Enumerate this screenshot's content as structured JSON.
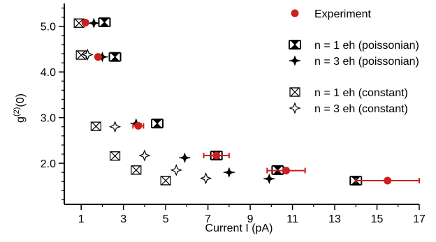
{
  "chart_data": {
    "type": "scatter",
    "xlabel": "Current I (pA)",
    "ylabel_main": "g",
    "ylabel_sup": "(2)",
    "ylabel_suffix": "(0)",
    "xlim": [
      0.2,
      17
    ],
    "ylim": [
      1.1,
      5.5
    ],
    "xticks": [
      1,
      3,
      5,
      7,
      9,
      11,
      13,
      15,
      17
    ],
    "yticks": [
      2.0,
      3.0,
      4.0,
      5.0
    ],
    "xtick_labels": [
      "1",
      "3",
      "5",
      "7",
      "9",
      "11",
      "13",
      "15",
      "17"
    ],
    "ytick_labels": [
      "2.0",
      "3.0",
      "4.0",
      "5.0"
    ],
    "grid": false,
    "legend_position": "top-right",
    "series": [
      {
        "name": "Experiment",
        "marker": "filled-circle",
        "color": "#cc1f1f",
        "points": [
          {
            "x": 1.2,
            "y": 5.08,
            "xerr": 0.1
          },
          {
            "x": 1.8,
            "y": 4.33,
            "xerr": 0.1
          },
          {
            "x": 3.7,
            "y": 2.82,
            "xerr": 0.25
          },
          {
            "x": 7.4,
            "y": 2.17,
            "xerr": 0.6
          },
          {
            "x": 10.7,
            "y": 1.84,
            "xerr": 0.9
          },
          {
            "x": 15.5,
            "y": 1.62,
            "xerr": 1.5
          }
        ]
      },
      {
        "name": "n = 1 eh (poissonian)",
        "marker": "filled-hourglass",
        "color": "#000000",
        "points": [
          {
            "x": 2.1,
            "y": 5.09
          },
          {
            "x": 2.6,
            "y": 4.33
          },
          {
            "x": 4.6,
            "y": 2.87
          },
          {
            "x": 7.4,
            "y": 2.17
          },
          {
            "x": 10.3,
            "y": 1.85
          },
          {
            "x": 14.0,
            "y": 1.62
          }
        ]
      },
      {
        "name": "n = 3 eh (poissonian)",
        "marker": "filled-star",
        "color": "#000000",
        "points": [
          {
            "x": 1.6,
            "y": 5.07
          },
          {
            "x": 2.0,
            "y": 4.33
          },
          {
            "x": 3.6,
            "y": 2.87
          },
          {
            "x": 5.9,
            "y": 2.12
          },
          {
            "x": 8.0,
            "y": 1.8
          },
          {
            "x": 9.9,
            "y": 1.66
          }
        ]
      },
      {
        "name": "n = 1 eh (constant)",
        "marker": "open-hourglass",
        "color": "#000000",
        "points": [
          {
            "x": 0.9,
            "y": 5.07
          },
          {
            "x": 1.0,
            "y": 4.37
          },
          {
            "x": 1.7,
            "y": 2.81
          },
          {
            "x": 2.6,
            "y": 2.16
          },
          {
            "x": 3.6,
            "y": 1.85
          },
          {
            "x": 5.0,
            "y": 1.62
          }
        ]
      },
      {
        "name": "n = 3 eh (constant)",
        "marker": "open-star",
        "color": "#000000",
        "points": [
          {
            "x": 1.3,
            "y": 4.38
          },
          {
            "x": 2.6,
            "y": 2.8
          },
          {
            "x": 4.0,
            "y": 2.17
          },
          {
            "x": 5.5,
            "y": 1.85
          },
          {
            "x": 6.9,
            "y": 1.67
          }
        ]
      }
    ]
  }
}
